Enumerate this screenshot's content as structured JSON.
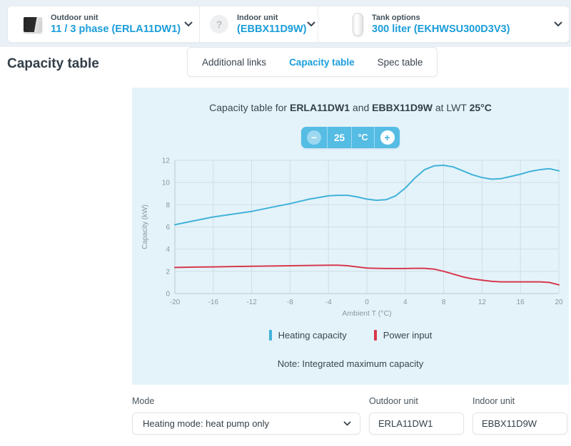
{
  "topbar": {
    "selectors": [
      {
        "icon": "outdoor-unit-icon",
        "label": "Outdoor unit",
        "value": "11 / 3 phase (ERLA11DW1)"
      },
      {
        "icon": "question-icon",
        "label": "Indoor unit",
        "value": "(EBBX11D9W)"
      },
      {
        "icon": "tank-icon",
        "label": "Tank options",
        "value": "300 liter (EKHWSU300D3V3)"
      }
    ]
  },
  "page": {
    "title": "Capacity table"
  },
  "tabs": [
    {
      "label": "Additional links",
      "active": false
    },
    {
      "label": "Capacity table",
      "active": true
    },
    {
      "label": "Spec table",
      "active": false
    }
  ],
  "chart_panel": {
    "title_parts": {
      "prefix": "Capacity table for",
      "outdoor": "ERLA11DW1",
      "conj": "and",
      "indoor": "EBBX11D9W",
      "suffix": "at LWT",
      "temp": "25°C"
    },
    "stepper": {
      "minus": "−",
      "value": "25",
      "unit": "°C",
      "plus": "+"
    },
    "note": "Note: Integrated maximum capacity"
  },
  "chart_data": {
    "type": "line",
    "title": "Capacity table for ERLA11DW1 and EBBX11D9W at LWT 25°C",
    "xlabel": "Ambient T (°C)",
    "ylabel": "Capacity (kW)",
    "xlim": [
      -20,
      20
    ],
    "ylim": [
      0,
      12
    ],
    "xticks": [
      -20,
      -16,
      -12,
      -8,
      -4,
      0,
      4,
      8,
      12,
      16,
      20
    ],
    "yticks": [
      0,
      2,
      4,
      6,
      8,
      10,
      12
    ],
    "grid": true,
    "legend_position": "bottom",
    "x": [
      -20,
      -18,
      -16,
      -14,
      -12,
      -10,
      -8,
      -6,
      -4,
      -3,
      -2,
      -1,
      0,
      1,
      2,
      3,
      4,
      5,
      6,
      7,
      8,
      9,
      10,
      11,
      12,
      13,
      14,
      15,
      16,
      17,
      18,
      19,
      20
    ],
    "series": [
      {
        "name": "Heating capacity",
        "color": "#41b2d8",
        "values": [
          6.2,
          6.55,
          6.9,
          7.15,
          7.4,
          7.75,
          8.1,
          8.5,
          8.8,
          8.85,
          8.85,
          8.7,
          8.5,
          8.4,
          8.45,
          8.8,
          9.5,
          10.4,
          11.15,
          11.5,
          11.55,
          11.4,
          11.05,
          10.7,
          10.45,
          10.3,
          10.35,
          10.55,
          10.75,
          11.0,
          11.15,
          11.25,
          11.05
        ]
      },
      {
        "name": "Power input",
        "color": "#d7394d",
        "values": [
          2.35,
          2.38,
          2.4,
          2.43,
          2.45,
          2.48,
          2.5,
          2.53,
          2.55,
          2.55,
          2.5,
          2.4,
          2.3,
          2.27,
          2.25,
          2.25,
          2.25,
          2.27,
          2.27,
          2.2,
          2.0,
          1.75,
          1.5,
          1.32,
          1.2,
          1.1,
          1.05,
          1.05,
          1.05,
          1.05,
          1.05,
          1.0,
          0.78
        ]
      }
    ]
  },
  "form": {
    "mode": {
      "label": "Mode",
      "value": "Heating mode: heat pump only"
    },
    "outdoor": {
      "label": "Outdoor unit",
      "value": "ERLA11DW1"
    },
    "indoor": {
      "label": "Indoor unit",
      "value": "EBBX11D9W"
    }
  },
  "colors": {
    "accent": "#1b9dd9",
    "heating": "#41b2d8",
    "power": "#d7394d",
    "panel_bg": "#e4f3fa",
    "stepper_bg": "#55bce4",
    "grid": "#cfdde5",
    "axis_text": "#8a959e"
  }
}
